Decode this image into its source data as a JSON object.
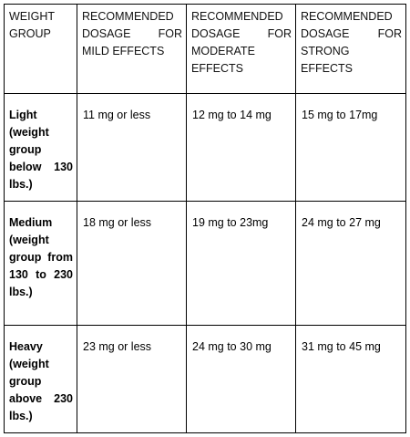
{
  "table": {
    "headers": [
      "WEIGHT GROUP",
      "RECOMMENDED DOSAGE FOR MILD EFFECTS",
      "RECOMMENDED DOSAGE FOR MODERATE EFFECTS",
      "RECOMMENDED DOSAGE FOR STRONG EFFECTS"
    ],
    "rows": [
      {
        "group": "Light (weight group below 130 lbs.)",
        "mild": "11 mg or less",
        "moderate": "12 mg to 14 mg",
        "strong": "15 mg to 17mg"
      },
      {
        "group": "Medium (weight group from 130 to 230 lbs.)",
        "mild": "18 mg or less",
        "moderate": "19 mg to 23mg",
        "strong": "24 mg to 27 mg"
      },
      {
        "group": "Heavy (weight group above 230 lbs.)",
        "mild": "23 mg or less",
        "moderate": "24 mg to 30 mg",
        "strong": "31 mg to 45 mg"
      }
    ]
  }
}
